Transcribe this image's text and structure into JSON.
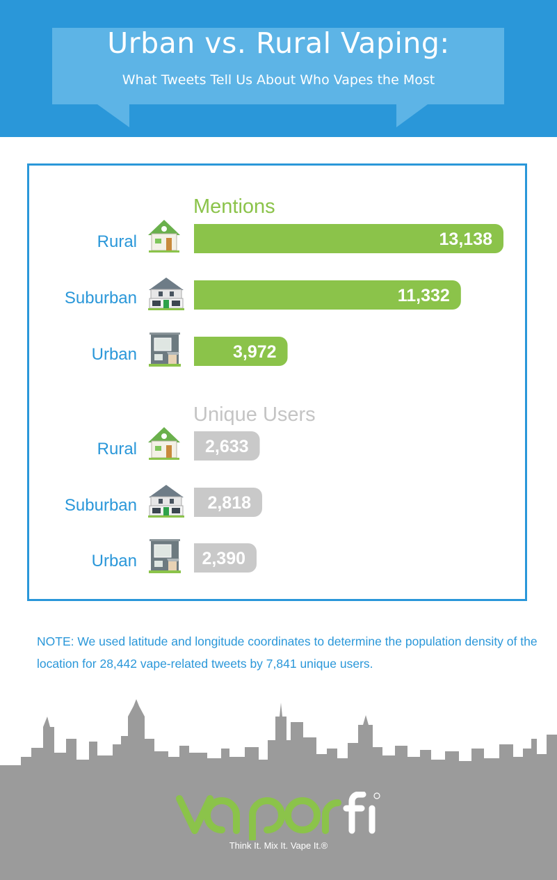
{
  "header": {
    "title": "Urban vs. Rural Vaping:",
    "subtitle": "What Tweets Tell Us About Who Vapes the Most"
  },
  "colors": {
    "header_bg": "#2a97d9",
    "bubble": "#5db4e6",
    "mentions_bar": "#8bc34a",
    "users_bar": "#c9c9c9",
    "label": "#2a97d9",
    "skyline": "#9b9b9b"
  },
  "chart_data": [
    {
      "type": "bar",
      "orientation": "horizontal",
      "title": "Mentions",
      "categories": [
        "Rural",
        "Suburban",
        "Urban"
      ],
      "values": [
        13138,
        11332,
        3972
      ],
      "value_labels": [
        "13,138",
        "11,332",
        "3,972"
      ],
      "icons": [
        "rural-house-icon",
        "suburban-house-icon",
        "urban-building-icon"
      ],
      "xlim": [
        0,
        13138
      ]
    },
    {
      "type": "bar",
      "orientation": "horizontal",
      "title": "Unique Users",
      "categories": [
        "Rural",
        "Suburban",
        "Urban"
      ],
      "values": [
        2633,
        2818,
        2390
      ],
      "value_labels": [
        "2,633",
        "2,818",
        "2,390"
      ],
      "icons": [
        "rural-house-icon",
        "suburban-house-icon",
        "urban-building-icon"
      ]
    }
  ],
  "note": "NOTE: We used latitude and longitude coordinates to determine the population density of the location for 28,442 vape-related tweets by 7,841 unique users.",
  "footer": {
    "brand": "vaporfi",
    "tagline": "Think It. Mix It. Vape It.®"
  }
}
